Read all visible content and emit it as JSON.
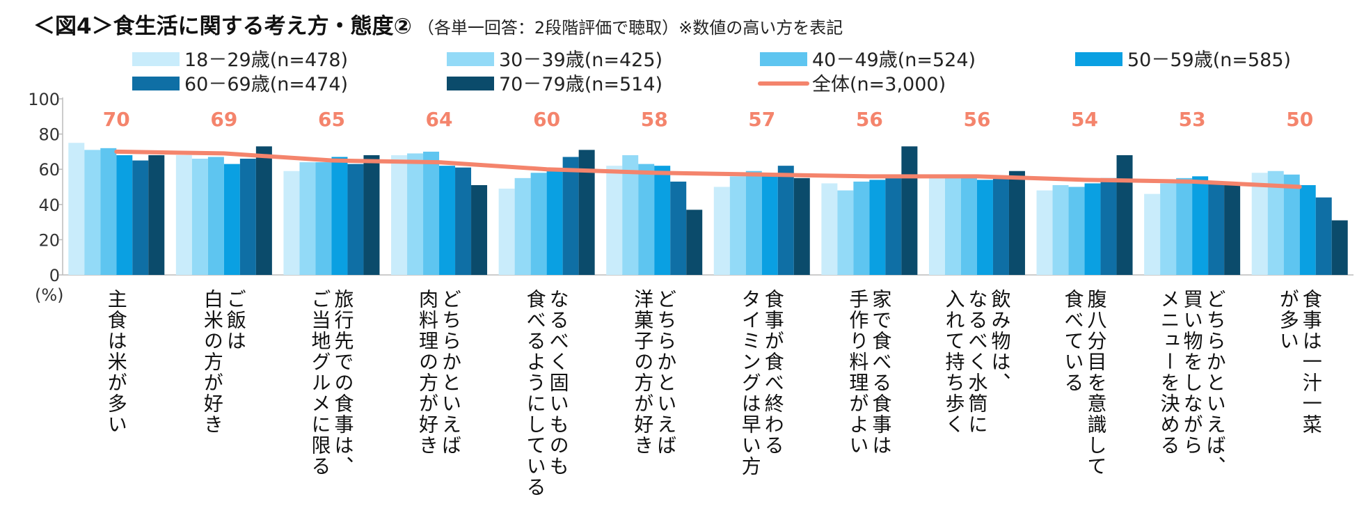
{
  "title": "＜図4＞食生活に関する考え方・態度②",
  "subtitle": "（各単一回答：2段階評価で聴取）※数値の高い方を表記",
  "chart_data": {
    "type": "bar",
    "overlay_line": "全体(n=3,000)",
    "ylabel": "(%)",
    "ylim": [
      0,
      100
    ],
    "yticks": [
      "100",
      "80",
      "60",
      "40",
      "20",
      "0"
    ],
    "legend_position": "top",
    "categories": [
      [
        "主食は米が多い"
      ],
      [
        "ご飯は",
        "白米の方が好き"
      ],
      [
        "旅行先での食事は、",
        "ご当地グルメに限る"
      ],
      [
        "どちらかといえば",
        "肉料理の方が好き"
      ],
      [
        "なるべく固いものも",
        "食べるようにしている"
      ],
      [
        "どちらかといえば",
        "洋菓子の方が好き"
      ],
      [
        "食事が食べ終わる",
        "タイミングは早い方"
      ],
      [
        "家で食べる食事は",
        "手作り料理がよい"
      ],
      [
        "飲み物は、",
        "なるべく水筒に",
        "入れて持ち歩く"
      ],
      [
        "腹八分目を意識して",
        "食べている"
      ],
      [
        "どちらかといえば、",
        "買い物をしながら",
        "メニューを決める"
      ],
      [
        "食事は一汁一菜",
        "が多い"
      ]
    ],
    "series": [
      {
        "name": "18－29歳(n=478)",
        "color": "#c9ecfb",
        "values": [
          75,
          68,
          59,
          68,
          49,
          62,
          50,
          52,
          55,
          48,
          46,
          58
        ]
      },
      {
        "name": "30－39歳(n=425)",
        "color": "#93daf7",
        "values": [
          71,
          66,
          64,
          69,
          55,
          68,
          56,
          48,
          55,
          51,
          52,
          59
        ]
      },
      {
        "name": "40－49歳(n=524)",
        "color": "#5ec5f0",
        "values": [
          72,
          67,
          64,
          70,
          58,
          63,
          59,
          53,
          55,
          50,
          55,
          57
        ]
      },
      {
        "name": "50－59歳(n=585)",
        "color": "#0aa0e2",
        "values": [
          68,
          63,
          67,
          62,
          60,
          62,
          56,
          54,
          54,
          52,
          56,
          51
        ]
      },
      {
        "name": "60－69歳(n=474)",
        "color": "#0f6fa5",
        "values": [
          65,
          66,
          63,
          61,
          67,
          53,
          62,
          55,
          55,
          55,
          53,
          44
        ]
      },
      {
        "name": "70－79歳(n=514)",
        "color": "#0b4b6b",
        "values": [
          68,
          73,
          68,
          51,
          71,
          37,
          55,
          73,
          59,
          68,
          52,
          31
        ]
      }
    ],
    "total": {
      "name": "全体(n=3,000)",
      "color": "#f4846c",
      "values": [
        70,
        69,
        65,
        64,
        60,
        58,
        57,
        56,
        56,
        54,
        53,
        50
      ]
    }
  }
}
